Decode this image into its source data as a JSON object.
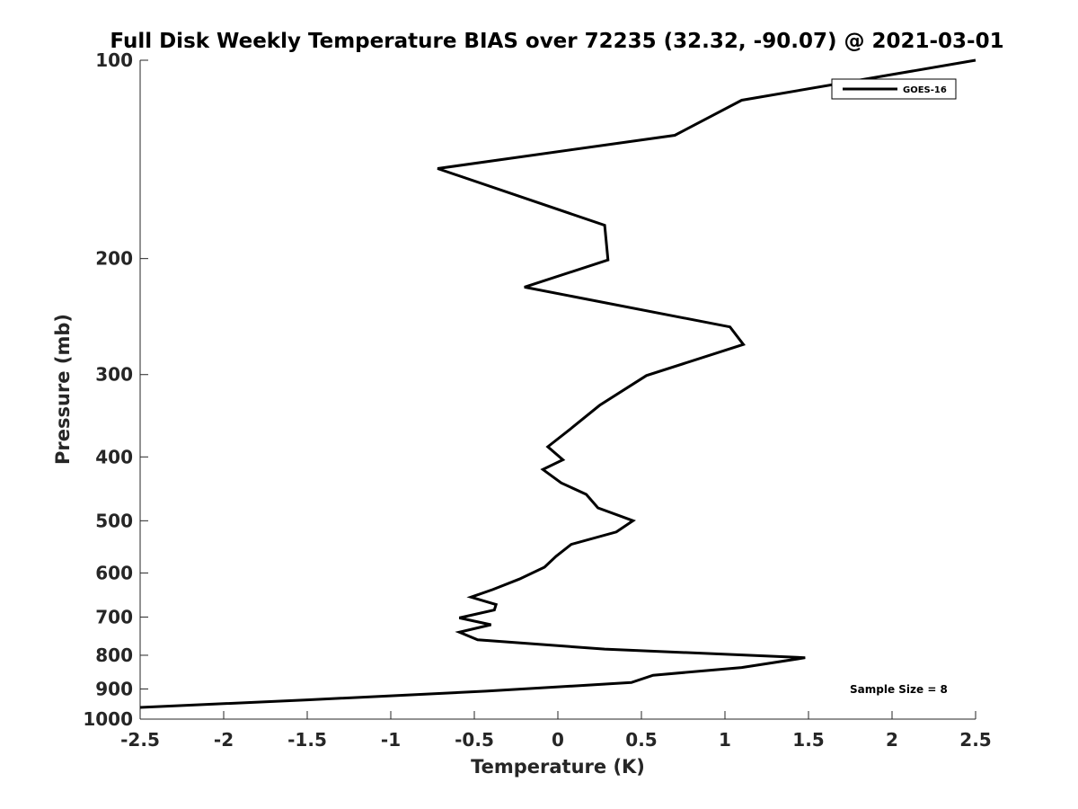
{
  "chart_data": {
    "type": "line",
    "title": "Full Disk Weekly Temperature BIAS over 72235 (32.32, -90.07) @ 2021-03-01",
    "xlabel": "Temperature (K)",
    "ylabel": "Pressure (mb)",
    "xlim": [
      -2.5,
      2.5
    ],
    "ylim": [
      1000,
      100
    ],
    "y_scale": "log",
    "y_reversed": true,
    "x_ticks": [
      -2.5,
      -2,
      -1.5,
      -1,
      -0.5,
      0,
      0.5,
      1,
      1.5,
      2,
      2.5
    ],
    "x_tick_labels": [
      "-2.5",
      "-2",
      "-1.5",
      "-1",
      "-0.5",
      "0",
      "0.5",
      "1",
      "1.5",
      "2",
      "2.5"
    ],
    "y_ticks": [
      100,
      200,
      300,
      400,
      500,
      600,
      700,
      800,
      900,
      1000
    ],
    "y_tick_labels": [
      "100",
      "200",
      "300",
      "400",
      "500",
      "600",
      "700",
      "800",
      "900",
      "1000"
    ],
    "grid": false,
    "legend": {
      "position": "top-right",
      "entries": [
        "GOES-16"
      ]
    },
    "annotation": "Sample Size = 8",
    "series": [
      {
        "name": "GOES-16",
        "color": "#000000",
        "x": [
          2.5,
          1.1,
          0.7,
          -0.72,
          0.28,
          0.3,
          -0.2,
          1.03,
          1.11,
          0.53,
          0.25,
          0.08,
          -0.06,
          0.03,
          -0.09,
          0.02,
          0.17,
          0.24,
          0.45,
          0.35,
          0.08,
          -0.01,
          -0.08,
          -0.23,
          -0.39,
          -0.52,
          -0.37,
          -0.38,
          -0.59,
          -0.4,
          -0.59,
          -0.48,
          0.28,
          1.48,
          1.1,
          0.57,
          0.44,
          -0.43,
          -1.5,
          -2.5
        ],
        "y": [
          100,
          115,
          130,
          146,
          178,
          201,
          221,
          254,
          270,
          301,
          334,
          362,
          386,
          404,
          418,
          438,
          456,
          478,
          500,
          520,
          543,
          566,
          588,
          613,
          636,
          653,
          670,
          683,
          702,
          719,
          738,
          758,
          783,
          807,
          835,
          858,
          880,
          907,
          935,
          960
        ]
      }
    ]
  }
}
